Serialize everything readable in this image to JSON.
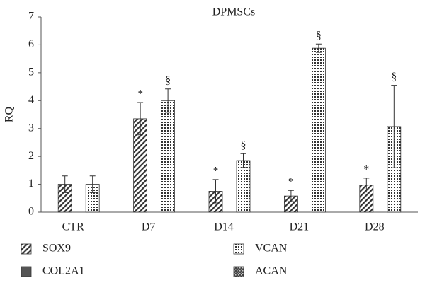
{
  "chart_data": {
    "type": "bar",
    "title": "DPMSCs",
    "y_label": "RQ",
    "categories": [
      "CTR",
      "D7",
      "D14",
      "D21",
      "D28"
    ],
    "series": [
      {
        "name": "SOX9",
        "color": "#333333",
        "pattern": "diagonal",
        "values": [
          1.0,
          3.35,
          0.75,
          0.58,
          0.97
        ],
        "errors": [
          0.3,
          0.58,
          0.42,
          0.2,
          0.25
        ],
        "annotations": [
          null,
          "*",
          "*",
          "*",
          "*"
        ]
      },
      {
        "name": "COL2A1",
        "color": "#555555",
        "pattern": "solid",
        "values": [
          null,
          null,
          null,
          null,
          null
        ],
        "errors": [
          null,
          null,
          null,
          null,
          null
        ],
        "annotations": [
          null,
          null,
          null,
          null,
          null
        ]
      },
      {
        "name": "VCAN",
        "color": "#333333",
        "pattern": "dots",
        "values": [
          1.0,
          4.0,
          1.85,
          5.88,
          3.07
        ],
        "errors": [
          0.3,
          0.42,
          0.25,
          0.15,
          1.48
        ],
        "annotations": [
          null,
          "§",
          "§",
          "§",
          "§"
        ]
      },
      {
        "name": "ACAN",
        "color": "#444444",
        "pattern": "crosshatch",
        "values": [
          null,
          null,
          null,
          null,
          null
        ],
        "errors": [
          null,
          null,
          null,
          null,
          null
        ],
        "annotations": [
          null,
          null,
          null,
          null,
          null
        ]
      }
    ],
    "ylim": [
      0,
      7
    ],
    "yticks": [
      0,
      1,
      2,
      3,
      4,
      5,
      6,
      7
    ],
    "grid": false,
    "legend": "bottom"
  }
}
